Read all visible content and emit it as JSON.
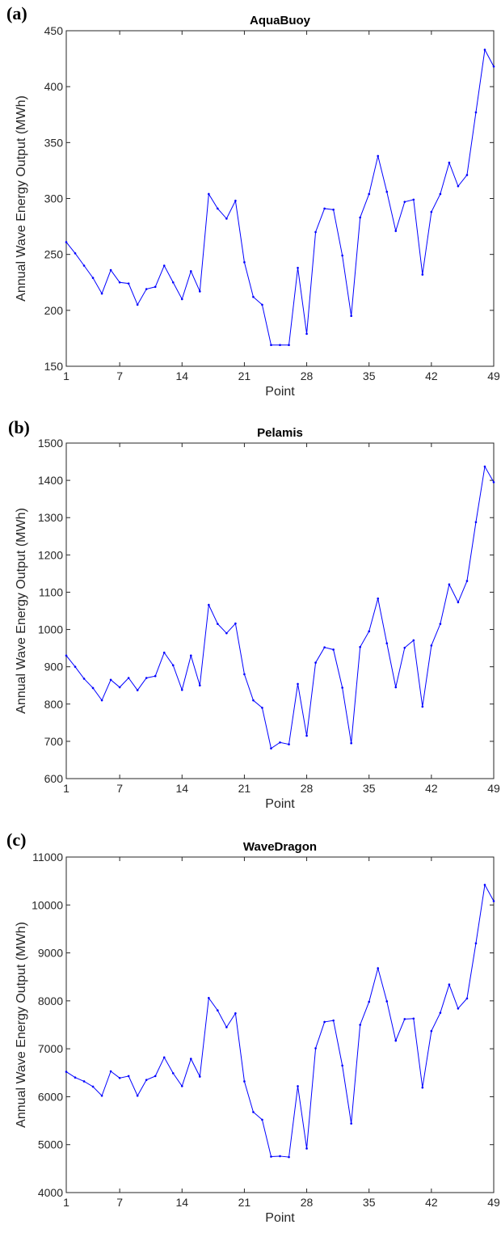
{
  "chart_data": [
    {
      "type": "line",
      "panel_label": "(a)",
      "title": "AquaBuoy",
      "xlabel": "Point",
      "ylabel": "Annual Wave Energy Output (MWh)",
      "xlim": [
        1,
        49
      ],
      "ylim": [
        150,
        450
      ],
      "xticks": [
        1,
        7,
        14,
        21,
        28,
        35,
        42,
        49
      ],
      "yticks": [
        150,
        200,
        250,
        300,
        350,
        400,
        450
      ],
      "grid": false,
      "color": "#0000ff",
      "x": [
        1,
        2,
        3,
        4,
        5,
        6,
        7,
        8,
        9,
        10,
        11,
        12,
        13,
        14,
        15,
        16,
        17,
        18,
        19,
        20,
        21,
        22,
        23,
        24,
        25,
        26,
        27,
        28,
        29,
        30,
        31,
        32,
        33,
        34,
        35,
        36,
        37,
        38,
        39,
        40,
        41,
        42,
        43,
        44,
        45,
        46,
        47,
        48,
        49
      ],
      "values": [
        261,
        251,
        240,
        229,
        215,
        236,
        225,
        224,
        205,
        219,
        221,
        240,
        225,
        210,
        235,
        217,
        304,
        291,
        282,
        298,
        243,
        212,
        205,
        169,
        169,
        169,
        238,
        179,
        270,
        291,
        290,
        249,
        195,
        283,
        304,
        338,
        306,
        271,
        297,
        299,
        232,
        288,
        304,
        332,
        311,
        321,
        377,
        433,
        418
      ]
    },
    {
      "type": "line",
      "panel_label": "(b)",
      "title": "Pelamis",
      "xlabel": "Point",
      "ylabel": "Annual Wave Energy Output (MWh)",
      "xlim": [
        1,
        49
      ],
      "ylim": [
        600,
        1500
      ],
      "xticks": [
        1,
        7,
        14,
        21,
        28,
        35,
        42,
        49
      ],
      "yticks": [
        600,
        700,
        800,
        900,
        1000,
        1100,
        1200,
        1300,
        1400,
        1500
      ],
      "grid": false,
      "color": "#0000ff",
      "x": [
        1,
        2,
        3,
        4,
        5,
        6,
        7,
        8,
        9,
        10,
        11,
        12,
        13,
        14,
        15,
        16,
        17,
        18,
        19,
        20,
        21,
        22,
        23,
        24,
        25,
        26,
        27,
        28,
        29,
        30,
        31,
        32,
        33,
        34,
        35,
        36,
        37,
        38,
        39,
        40,
        41,
        42,
        43,
        44,
        45,
        46,
        47,
        48,
        49
      ],
      "values": [
        930,
        900,
        868,
        843,
        810,
        865,
        845,
        870,
        837,
        870,
        875,
        938,
        904,
        838,
        930,
        850,
        1066,
        1015,
        990,
        1016,
        880,
        810,
        790,
        681,
        697,
        692,
        854,
        715,
        911,
        952,
        946,
        844,
        695,
        953,
        995,
        1083,
        963,
        845,
        951,
        971,
        793,
        957,
        1015,
        1121,
        1073,
        1130,
        1288,
        1437,
        1395
      ]
    },
    {
      "type": "line",
      "panel_label": "(c)",
      "title": "WaveDragon",
      "xlabel": "Point",
      "ylabel": "Annual Wave Energy Output (MWh)",
      "xlim": [
        1,
        49
      ],
      "ylim": [
        4000,
        11000
      ],
      "xticks": [
        1,
        7,
        14,
        21,
        28,
        35,
        42,
        49
      ],
      "yticks": [
        4000,
        5000,
        6000,
        7000,
        8000,
        9000,
        10000,
        11000
      ],
      "grid": false,
      "color": "#0000ff",
      "x": [
        1,
        2,
        3,
        4,
        5,
        6,
        7,
        8,
        9,
        10,
        11,
        12,
        13,
        14,
        15,
        16,
        17,
        18,
        19,
        20,
        21,
        22,
        23,
        24,
        25,
        26,
        27,
        28,
        29,
        30,
        31,
        32,
        33,
        34,
        35,
        36,
        37,
        38,
        39,
        40,
        41,
        42,
        43,
        44,
        45,
        46,
        47,
        48,
        49
      ],
      "values": [
        6520,
        6400,
        6320,
        6210,
        6020,
        6530,
        6390,
        6430,
        6020,
        6350,
        6430,
        6820,
        6490,
        6220,
        6790,
        6420,
        8060,
        7800,
        7450,
        7740,
        6320,
        5680,
        5520,
        4750,
        4760,
        4740,
        6220,
        4920,
        7010,
        7560,
        7590,
        6650,
        5440,
        7500,
        7980,
        8680,
        7990,
        7170,
        7620,
        7630,
        6190,
        7370,
        7750,
        8340,
        7840,
        8050,
        9200,
        10420,
        10080
      ]
    }
  ]
}
